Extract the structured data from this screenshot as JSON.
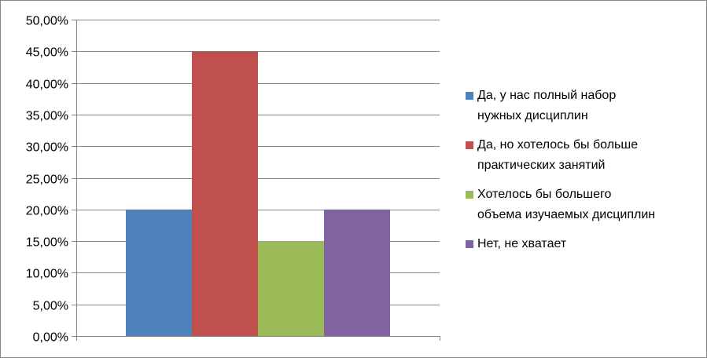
{
  "chart_data": {
    "type": "bar",
    "title": "",
    "xlabel": "",
    "ylabel": "",
    "categories": [
      ""
    ],
    "ylim": [
      0,
      0.5
    ],
    "y_ticks": [
      "0,00%",
      "5,00%",
      "10,00%",
      "15,00%",
      "20,00%",
      "25,00%",
      "30,00%",
      "35,00%",
      "40,00%",
      "45,00%",
      "50,00%"
    ],
    "grid": true,
    "legend_position": "right",
    "series": [
      {
        "name": "Да, у нас полный набор\nнужных дисциплин",
        "values": [
          0.2
        ],
        "color": "#4F81BD"
      },
      {
        "name": "Да, но хотелось бы больше\nпрактических занятий",
        "values": [
          0.45
        ],
        "color": "#C0504D"
      },
      {
        "name": "Хотелось бы большего\nобъема изучаемых дисциплин",
        "values": [
          0.15
        ],
        "color": "#9BBB59"
      },
      {
        "name": "Нет, не хватает",
        "values": [
          0.2
        ],
        "color": "#8064A2"
      }
    ]
  }
}
